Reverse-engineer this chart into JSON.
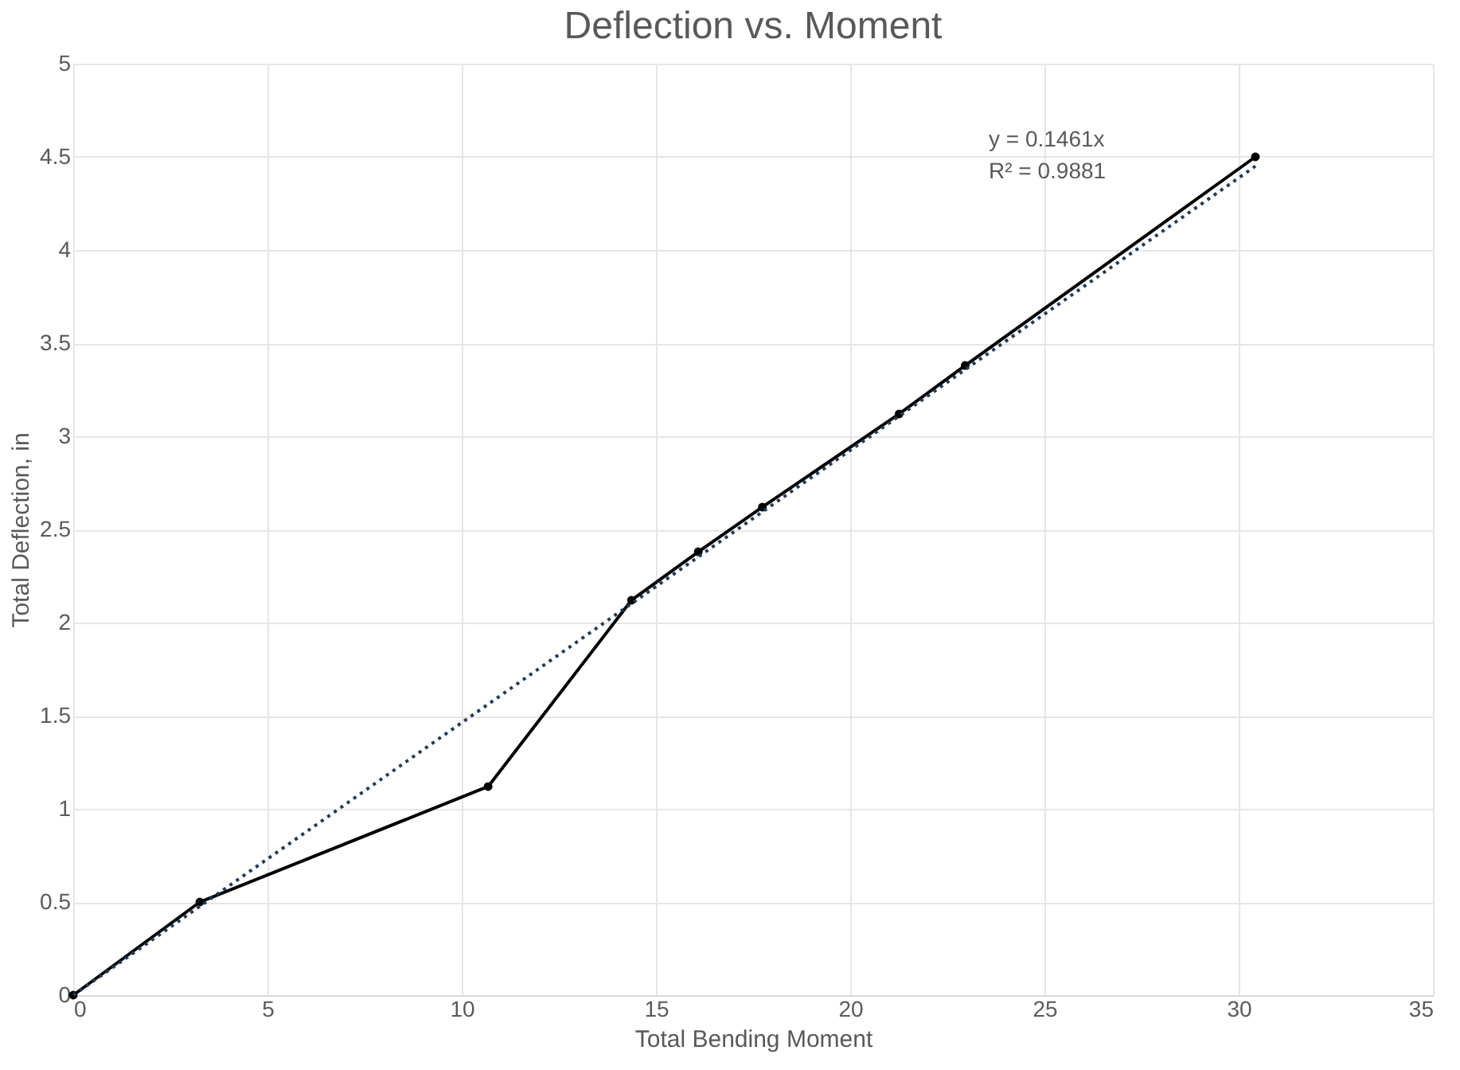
{
  "chart_data": {
    "type": "line",
    "title": "Deflection vs. Moment",
    "xlabel": "Total Bending Moment",
    "ylabel": "Total Deflection, in",
    "xlim": [
      0,
      35
    ],
    "xticks": [
      0,
      5,
      10,
      15,
      20,
      25,
      30,
      35
    ],
    "ylim": [
      0,
      5
    ],
    "yticks": [
      0,
      0.5,
      1,
      1.5,
      2,
      2.5,
      3,
      3.5,
      4,
      4.5,
      5
    ],
    "grid": true,
    "series": [
      {
        "color": "#000000",
        "marker": "circle",
        "line_style": "solid",
        "x": [
          0,
          3.26,
          10.68,
          14.37,
          16.09,
          17.74,
          21.26,
          22.96,
          30.43
        ],
        "values": [
          0,
          0.5,
          1.12,
          2.12,
          2.38,
          2.62,
          3.12,
          3.38,
          4.5
        ]
      },
      {
        "color": "#1f3b5a",
        "marker": "none",
        "line_style": "dotted",
        "x": [
          0,
          30.43
        ],
        "values": [
          0,
          4.45
        ]
      }
    ],
    "annotations": [
      "y = 0.1461x",
      "R² = 0.9881"
    ]
  }
}
